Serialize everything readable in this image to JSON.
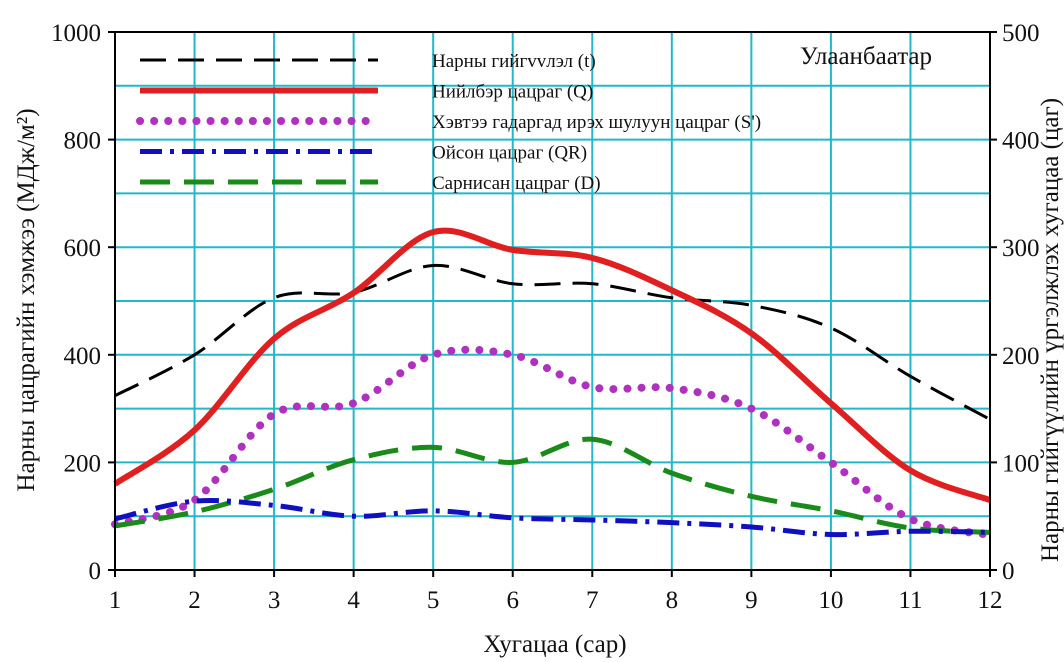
{
  "chart_data": {
    "type": "line",
    "title": "",
    "annotation": "Улаанбаатар",
    "xlabel": "Хугацаа (сар)",
    "ylabel": "Нарны цацрагийн хэмжээ (МДж/м²)",
    "y2label": "Нарны гийгүүлийн үргэлжлэх хугацаа (цаг)",
    "x": [
      1,
      2,
      3,
      4,
      5,
      6,
      7,
      8,
      9,
      10,
      11,
      12
    ],
    "xlim": [
      1,
      12
    ],
    "ylim": [
      0,
      1000
    ],
    "y2lim": [
      0,
      500
    ],
    "xticks": [
      "1",
      "2",
      "3",
      "4",
      "5",
      "6",
      "7",
      "8",
      "9",
      "10",
      "11",
      "12"
    ],
    "yticks": [
      "0",
      "200",
      "400",
      "600",
      "800",
      "1000"
    ],
    "y2ticks": [
      "0",
      "100",
      "200",
      "300",
      "400",
      "500"
    ],
    "grid": true,
    "legend_position": "top-left",
    "series": [
      {
        "name": "Нарны гийгvvлэл (t)",
        "axis": "right",
        "color": "#000000",
        "dash": "long-dash",
        "values": [
          162,
          200,
          253,
          258,
          283,
          266,
          266,
          253,
          246,
          225,
          180,
          140
        ]
      },
      {
        "name": "Нийлбэр цацраг (Q)",
        "axis": "left",
        "color": "#e02020",
        "dash": "solid",
        "values": [
          160,
          260,
          430,
          515,
          628,
          595,
          580,
          520,
          440,
          310,
          185,
          130
        ]
      },
      {
        "name": "Хэвтээ гадаргад ирэх шулуун цацраг (S')",
        "axis": "left",
        "color": "#b030c0",
        "dash": "dotted",
        "values": [
          85,
          130,
          290,
          310,
          400,
          400,
          340,
          338,
          300,
          200,
          95,
          65
        ]
      },
      {
        "name": "Ойсон цацраг (QR)",
        "axis": "left",
        "color": "#1010c0",
        "dash": "dash-dot",
        "values": [
          95,
          128,
          120,
          100,
          110,
          97,
          93,
          88,
          80,
          66,
          72,
          70
        ]
      },
      {
        "name": "Сарнисан цацраг (D)",
        "axis": "left",
        "color": "#1a8a1a",
        "dash": "dashed",
        "values": [
          82,
          108,
          150,
          205,
          228,
          200,
          243,
          180,
          137,
          110,
          78,
          70
        ]
      }
    ]
  }
}
